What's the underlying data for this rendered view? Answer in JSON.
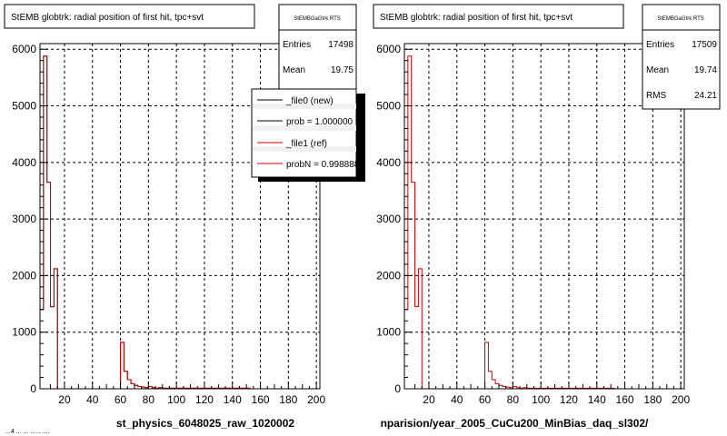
{
  "colors": {
    "frame": "#000000",
    "grid": "#000000",
    "new_series": "#000000",
    "ref_series": "#cc0000",
    "background": "#ffffff"
  },
  "footer_text": "...4 ... ... ...... ....",
  "panels": [
    {
      "title": "StEMB globtrk: radial position of first hit, tpc+svt",
      "stats": {
        "name": "StEMBGaGtrk RTS",
        "entries_label": "Entries",
        "entries": "17498",
        "mean_label": "Mean",
        "mean": "19.75"
      },
      "legend": [
        {
          "label": "_file0 (new)",
          "color": "#000000"
        },
        {
          "label": "prob = 1.000000",
          "color": "#000000"
        },
        {
          "label": "_file1 (ref)",
          "color": "#cc0000"
        },
        {
          "label": "probN = 0.998888",
          "color": "#cc0000"
        }
      ],
      "caption": "st_physics_6048025_raw_1020002"
    },
    {
      "title": "StEMB globtrk: radial position of first hit, tpc+svt",
      "stats": {
        "name": "StEMBGaGtrk RTS",
        "entries_label": "Entries",
        "entries": "17509",
        "mean_label": "Mean",
        "mean": "19.74",
        "rms_label": "RMS",
        "rms": "24.21"
      },
      "caption": "nparision/year_2005_CuCu200_MinBias_daq_sl302/"
    }
  ],
  "chart_data": [
    {
      "type": "bar",
      "xlim": [
        2.5,
        202.5
      ],
      "ylim": [
        0,
        6100
      ],
      "x_ticks": [
        20,
        40,
        60,
        80,
        100,
        120,
        140,
        160,
        180,
        200
      ],
      "y_ticks": [
        0,
        1000,
        2000,
        3000,
        4000,
        5000,
        6000
      ],
      "grid": true,
      "bin_width": 2.5,
      "series": [
        {
          "name": "_file0 (new)",
          "color": "#000000",
          "x": [
            3.75,
            6.25,
            8.75,
            11.25,
            13.75,
            16.25,
            18.75,
            21.25,
            23.75,
            26.25,
            28.75,
            31.25,
            33.75,
            36.25,
            38.75,
            41.25,
            43.75,
            46.25,
            48.75,
            51.25,
            53.75,
            56.25,
            58.75,
            61.25,
            63.75,
            66.25,
            68.75,
            71.25,
            73.75,
            76.25,
            78.75,
            81.25,
            83.75,
            86.25,
            88.75,
            91.25,
            93.75,
            96.25,
            98.75,
            101.25,
            103.75,
            106.25,
            108.75,
            111.25,
            113.75,
            116.25,
            118.75,
            121.25,
            123.75,
            126.25,
            128.75,
            131.25,
            133.75,
            136.25,
            138.75,
            141.25,
            143.75,
            146.25,
            148.75,
            151.25,
            153.75,
            156.25,
            158.75,
            161.25,
            163.75,
            166.25,
            168.75,
            171.25,
            173.75,
            176.25,
            178.75,
            181.25,
            183.75,
            186.25,
            188.75,
            191.25,
            193.75,
            196.25,
            198.75,
            201.25
          ],
          "values": [
            1400,
            5880,
            3650,
            1450,
            2120,
            0,
            0,
            0,
            0,
            0,
            0,
            0,
            0,
            0,
            0,
            0,
            0,
            0,
            0,
            0,
            0,
            0,
            0,
            820,
            310,
            160,
            90,
            60,
            40,
            30,
            20,
            40,
            20,
            10,
            20,
            10,
            10,
            10,
            10,
            10,
            10,
            10,
            10,
            10,
            10,
            10,
            10,
            10,
            10,
            10,
            10,
            10,
            10,
            10,
            10,
            10,
            10,
            10,
            10,
            10,
            0,
            0,
            0,
            0,
            0,
            0,
            0,
            0,
            0,
            0,
            0,
            0,
            0,
            0,
            0,
            0,
            0,
            0,
            0,
            0
          ]
        },
        {
          "name": "_file1 (ref)",
          "color": "#cc0000",
          "x": [
            3.75,
            6.25,
            8.75,
            11.25,
            13.75,
            16.25,
            18.75,
            21.25,
            23.75,
            26.25,
            28.75,
            31.25,
            33.75,
            36.25,
            38.75,
            41.25,
            43.75,
            46.25,
            48.75,
            51.25,
            53.75,
            56.25,
            58.75,
            61.25,
            63.75,
            66.25,
            68.75,
            71.25,
            73.75,
            76.25,
            78.75,
            81.25,
            83.75,
            86.25,
            88.75,
            91.25,
            93.75,
            96.25,
            98.75,
            101.25,
            103.75,
            106.25,
            108.75,
            111.25,
            113.75,
            116.25,
            118.75,
            121.25,
            123.75,
            126.25,
            128.75,
            131.25,
            133.75,
            136.25,
            138.75,
            141.25,
            143.75,
            146.25,
            148.75,
            151.25,
            153.75,
            156.25,
            158.75,
            161.25,
            163.75,
            166.25,
            168.75,
            171.25,
            173.75,
            176.25,
            178.75,
            181.25,
            183.75,
            186.25,
            188.75,
            191.25,
            193.75,
            196.25,
            198.75,
            201.25
          ],
          "values": [
            1400,
            5880,
            3650,
            1450,
            2120,
            0,
            0,
            0,
            0,
            0,
            0,
            0,
            0,
            0,
            0,
            0,
            0,
            0,
            0,
            0,
            0,
            0,
            0,
            820,
            310,
            160,
            90,
            60,
            40,
            30,
            20,
            40,
            20,
            10,
            20,
            10,
            10,
            10,
            10,
            10,
            10,
            10,
            10,
            10,
            10,
            10,
            10,
            10,
            10,
            10,
            10,
            10,
            10,
            10,
            10,
            10,
            10,
            10,
            10,
            10,
            0,
            0,
            0,
            0,
            0,
            0,
            0,
            0,
            0,
            0,
            0,
            0,
            0,
            0,
            0,
            0,
            0,
            0,
            0,
            0
          ]
        }
      ]
    },
    {
      "type": "bar",
      "xlim": [
        2.5,
        202.5
      ],
      "ylim": [
        0,
        6100
      ],
      "x_ticks": [
        20,
        40,
        60,
        80,
        100,
        120,
        140,
        160,
        180,
        200
      ],
      "y_ticks": [
        0,
        1000,
        2000,
        3000,
        4000,
        5000,
        6000
      ],
      "grid": true,
      "bin_width": 2.5,
      "series": [
        {
          "color": "#cc0000",
          "x": [
            3.75,
            6.25,
            8.75,
            11.25,
            13.75,
            16.25,
            18.75,
            21.25,
            23.75,
            26.25,
            28.75,
            31.25,
            33.75,
            36.25,
            38.75,
            41.25,
            43.75,
            46.25,
            48.75,
            51.25,
            53.75,
            56.25,
            58.75,
            61.25,
            63.75,
            66.25,
            68.75,
            71.25,
            73.75,
            76.25,
            78.75,
            81.25,
            83.75,
            86.25,
            88.75,
            91.25,
            93.75,
            96.25,
            98.75,
            101.25,
            103.75,
            106.25,
            108.75,
            111.25,
            113.75,
            116.25,
            118.75,
            121.25,
            123.75,
            126.25,
            128.75,
            131.25,
            133.75,
            136.25,
            138.75,
            141.25,
            143.75,
            146.25,
            148.75,
            151.25,
            153.75,
            156.25,
            158.75,
            161.25,
            163.75,
            166.25,
            168.75,
            171.25,
            173.75,
            176.25,
            178.75,
            181.25,
            183.75,
            186.25,
            188.75,
            191.25,
            193.75,
            196.25,
            198.75,
            201.25
          ],
          "values": [
            1400,
            5880,
            3650,
            1450,
            2120,
            0,
            0,
            0,
            0,
            0,
            0,
            0,
            0,
            0,
            0,
            0,
            0,
            0,
            0,
            0,
            0,
            0,
            0,
            820,
            310,
            160,
            90,
            60,
            40,
            30,
            20,
            40,
            20,
            10,
            20,
            10,
            10,
            10,
            10,
            10,
            10,
            10,
            10,
            10,
            10,
            10,
            10,
            10,
            10,
            10,
            10,
            10,
            10,
            10,
            10,
            10,
            10,
            10,
            10,
            10,
            0,
            0,
            0,
            0,
            0,
            0,
            0,
            0,
            0,
            0,
            0,
            0,
            0,
            0,
            0,
            0,
            0,
            0,
            0,
            0
          ]
        }
      ]
    }
  ]
}
